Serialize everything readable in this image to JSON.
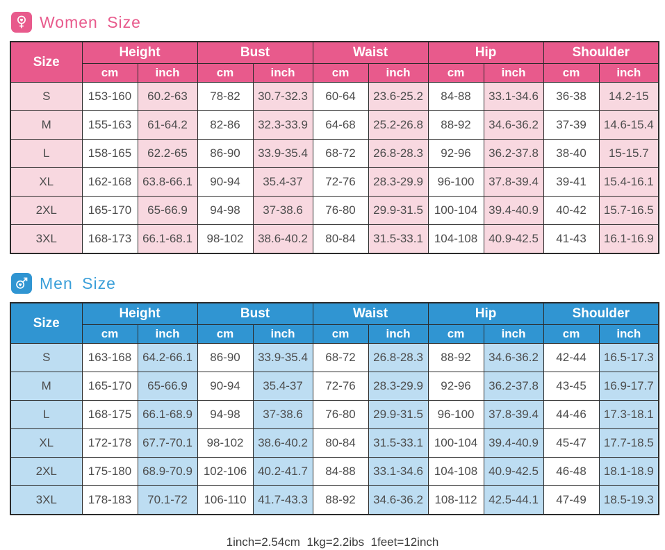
{
  "page": {
    "footer_note": "1inch=2.54cm  1kg=2.2ibs  1feet=12inch"
  },
  "colors": {
    "women_primary": "#E85A8C",
    "women_row_tint": "#F8D8E0",
    "men_primary": "#3095D2",
    "men_row_tint": "#BDDDF2",
    "table_border": "#2B2B2B",
    "cell_text": "#4D4D4D"
  },
  "icons": {
    "women": "female-heart-icon",
    "men": "male-heart-icon"
  },
  "women_table": {
    "title": "Women Size",
    "size_header": "Size",
    "groups": [
      "Height",
      "Bust",
      "Waist",
      "Hip",
      "Shoulder"
    ],
    "unit_cm": "cm",
    "unit_inch": "inch",
    "rows": [
      {
        "size": "S",
        "cells": [
          "153-160",
          "60.2-63",
          "78-82",
          "30.7-32.3",
          "60-64",
          "23.6-25.2",
          "84-88",
          "33.1-34.6",
          "36-38",
          "14.2-15"
        ]
      },
      {
        "size": "M",
        "cells": [
          "155-163",
          "61-64.2",
          "82-86",
          "32.3-33.9",
          "64-68",
          "25.2-26.8",
          "88-92",
          "34.6-36.2",
          "37-39",
          "14.6-15.4"
        ]
      },
      {
        "size": "L",
        "cells": [
          "158-165",
          "62.2-65",
          "86-90",
          "33.9-35.4",
          "68-72",
          "26.8-28.3",
          "92-96",
          "36.2-37.8",
          "38-40",
          "15-15.7"
        ]
      },
      {
        "size": "XL",
        "cells": [
          "162-168",
          "63.8-66.1",
          "90-94",
          "35.4-37",
          "72-76",
          "28.3-29.9",
          "96-100",
          "37.8-39.4",
          "39-41",
          "15.4-16.1"
        ]
      },
      {
        "size": "2XL",
        "cells": [
          "165-170",
          "65-66.9",
          "94-98",
          "37-38.6",
          "76-80",
          "29.9-31.5",
          "100-104",
          "39.4-40.9",
          "40-42",
          "15.7-16.5"
        ]
      },
      {
        "size": "3XL",
        "cells": [
          "168-173",
          "66.1-68.1",
          "98-102",
          "38.6-40.2",
          "80-84",
          "31.5-33.1",
          "104-108",
          "40.9-42.5",
          "41-43",
          "16.1-16.9"
        ]
      }
    ]
  },
  "men_table": {
    "title": "Men Size",
    "size_header": "Size",
    "groups": [
      "Height",
      "Bust",
      "Waist",
      "Hip",
      "Shoulder"
    ],
    "unit_cm": "cm",
    "unit_inch": "inch",
    "rows": [
      {
        "size": "S",
        "cells": [
          "163-168",
          "64.2-66.1",
          "86-90",
          "33.9-35.4",
          "68-72",
          "26.8-28.3",
          "88-92",
          "34.6-36.2",
          "42-44",
          "16.5-17.3"
        ]
      },
      {
        "size": "M",
        "cells": [
          "165-170",
          "65-66.9",
          "90-94",
          "35.4-37",
          "72-76",
          "28.3-29.9",
          "92-96",
          "36.2-37.8",
          "43-45",
          "16.9-17.7"
        ]
      },
      {
        "size": "L",
        "cells": [
          "168-175",
          "66.1-68.9",
          "94-98",
          "37-38.6",
          "76-80",
          "29.9-31.5",
          "96-100",
          "37.8-39.4",
          "44-46",
          "17.3-18.1"
        ]
      },
      {
        "size": "XL",
        "cells": [
          "172-178",
          "67.7-70.1",
          "98-102",
          "38.6-40.2",
          "80-84",
          "31.5-33.1",
          "100-104",
          "39.4-40.9",
          "45-47",
          "17.7-18.5"
        ]
      },
      {
        "size": "2XL",
        "cells": [
          "175-180",
          "68.9-70.9",
          "102-106",
          "40.2-41.7",
          "84-88",
          "33.1-34.6",
          "104-108",
          "40.9-42.5",
          "46-48",
          "18.1-18.9"
        ]
      },
      {
        "size": "3XL",
        "cells": [
          "178-183",
          "70.1-72",
          "106-110",
          "41.7-43.3",
          "88-92",
          "34.6-36.2",
          "108-112",
          "42.5-44.1",
          "47-49",
          "18.5-19.3"
        ]
      }
    ]
  }
}
